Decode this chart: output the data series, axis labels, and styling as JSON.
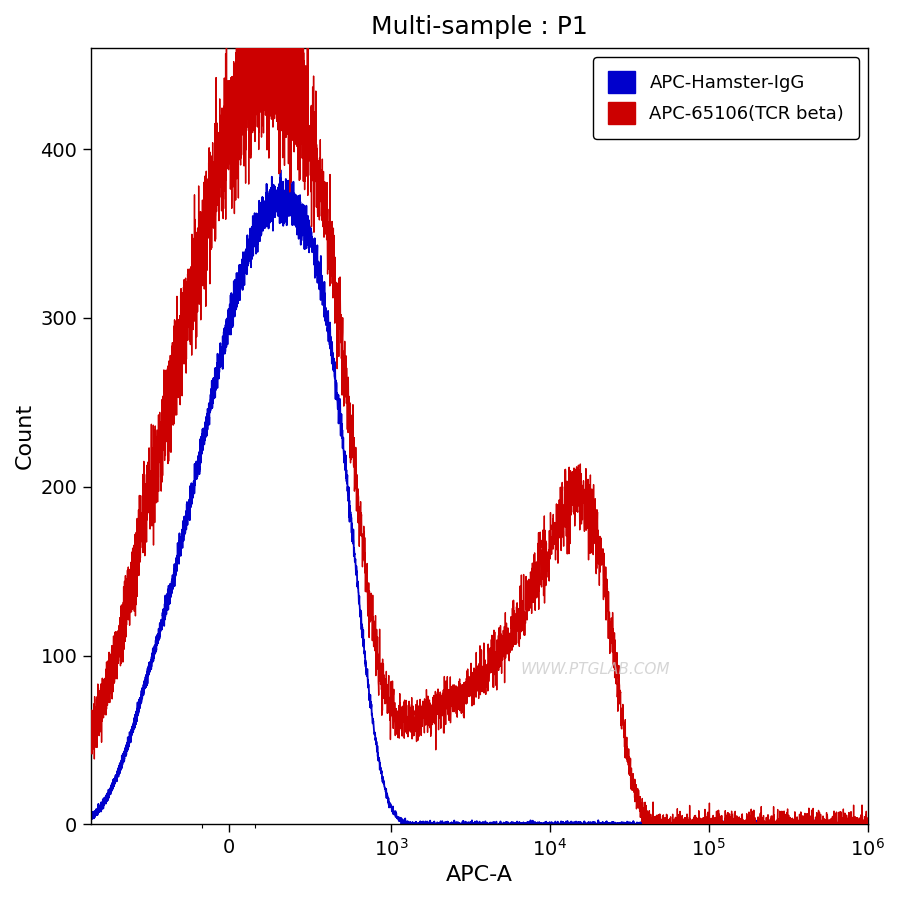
{
  "title": "Multi-sample : P1",
  "xlabel": "APC-A",
  "ylabel": "Count",
  "ylim": [
    0,
    460
  ],
  "yticks": [
    0,
    100,
    200,
    300,
    400
  ],
  "background_color": "#ffffff",
  "legend_labels": [
    "APC-Hamster-IgG",
    "APC-65106(TCR beta)"
  ],
  "legend_colors": [
    "#0000cc",
    "#cc0000"
  ],
  "watermark": "WWW.PTGLAB.COM",
  "linthresh": 300
}
